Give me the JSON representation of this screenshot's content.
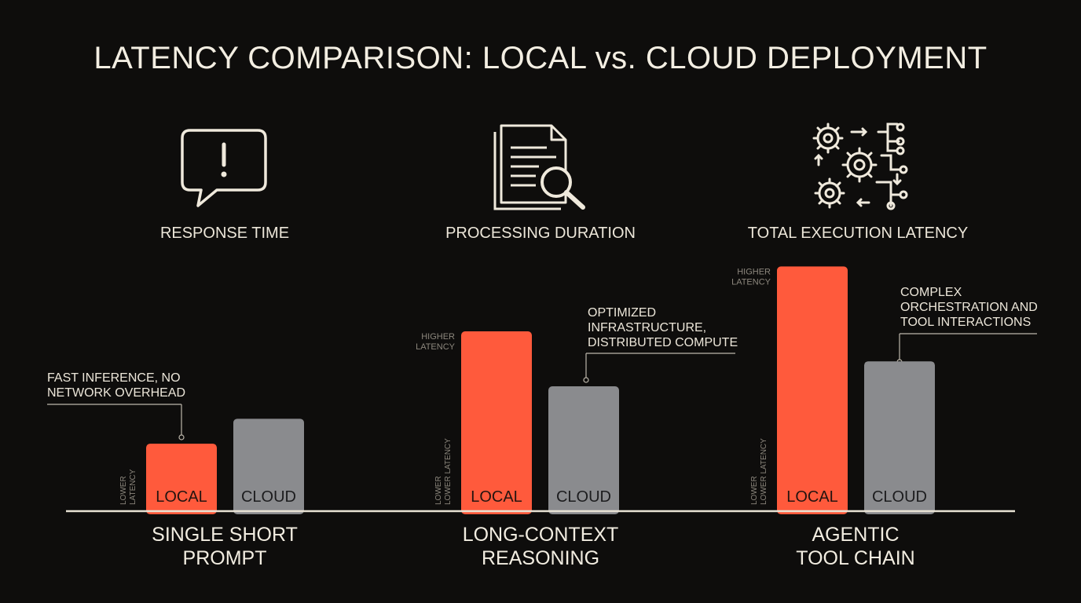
{
  "title": "LATENCY COMPARISON: LOCAL vs. CLOUD DEPLOYMENT",
  "metrics": [
    {
      "label": "RESPONSE TIME",
      "icon": "alert-speech-bubble-icon"
    },
    {
      "label": "PROCESSING DURATION",
      "icon": "document-magnifier-icon"
    },
    {
      "label": "TOTAL EXECUTION LATENCY",
      "icon": "gears-workflow-icon"
    }
  ],
  "annotations": [
    {
      "line1": "FAST INFERENCE, NO",
      "line2": "NETWORK OVERHEAD",
      "line3": ""
    },
    {
      "line1": "OPTIMIZED",
      "line2": "INFRASTRUCTURE,",
      "line3": "DISTRIBUTED COMPUTE"
    },
    {
      "line1": "COMPLEX",
      "line2": "ORCHESTRATION AND",
      "line3": "TOOL INTERACTIONS"
    }
  ],
  "colors": {
    "local": "#ff5a3c",
    "cloud": "#8a8b8e",
    "baseline": "#e8e2d4"
  },
  "chart_data": {
    "type": "bar",
    "title": "LATENCY COMPARISON: LOCAL vs. CLOUD DEPLOYMENT",
    "categories": [
      "SINGLE SHORT PROMPT",
      "LONG-CONTEXT REASONING",
      "AGENTIC TOOL CHAIN"
    ],
    "category_lines": [
      [
        "SINGLE SHORT",
        "PROMPT"
      ],
      [
        "LONG-CONTEXT",
        "REASONING"
      ],
      [
        "AGENTIC",
        "TOOL CHAIN"
      ]
    ],
    "series": [
      {
        "name": "LOCAL",
        "values": [
          0.27,
          0.72,
          0.98
        ]
      },
      {
        "name": "CLOUD",
        "values": [
          0.37,
          0.5,
          0.6
        ]
      }
    ],
    "ylim": [
      0,
      1
    ],
    "axis_notes": {
      "lower": "LOWER LATENCY",
      "lower_stacked": "LOWER",
      "higher_line1": "HIGHER",
      "higher_line2": "LATENCY"
    },
    "legend": "none",
    "grid": false
  }
}
